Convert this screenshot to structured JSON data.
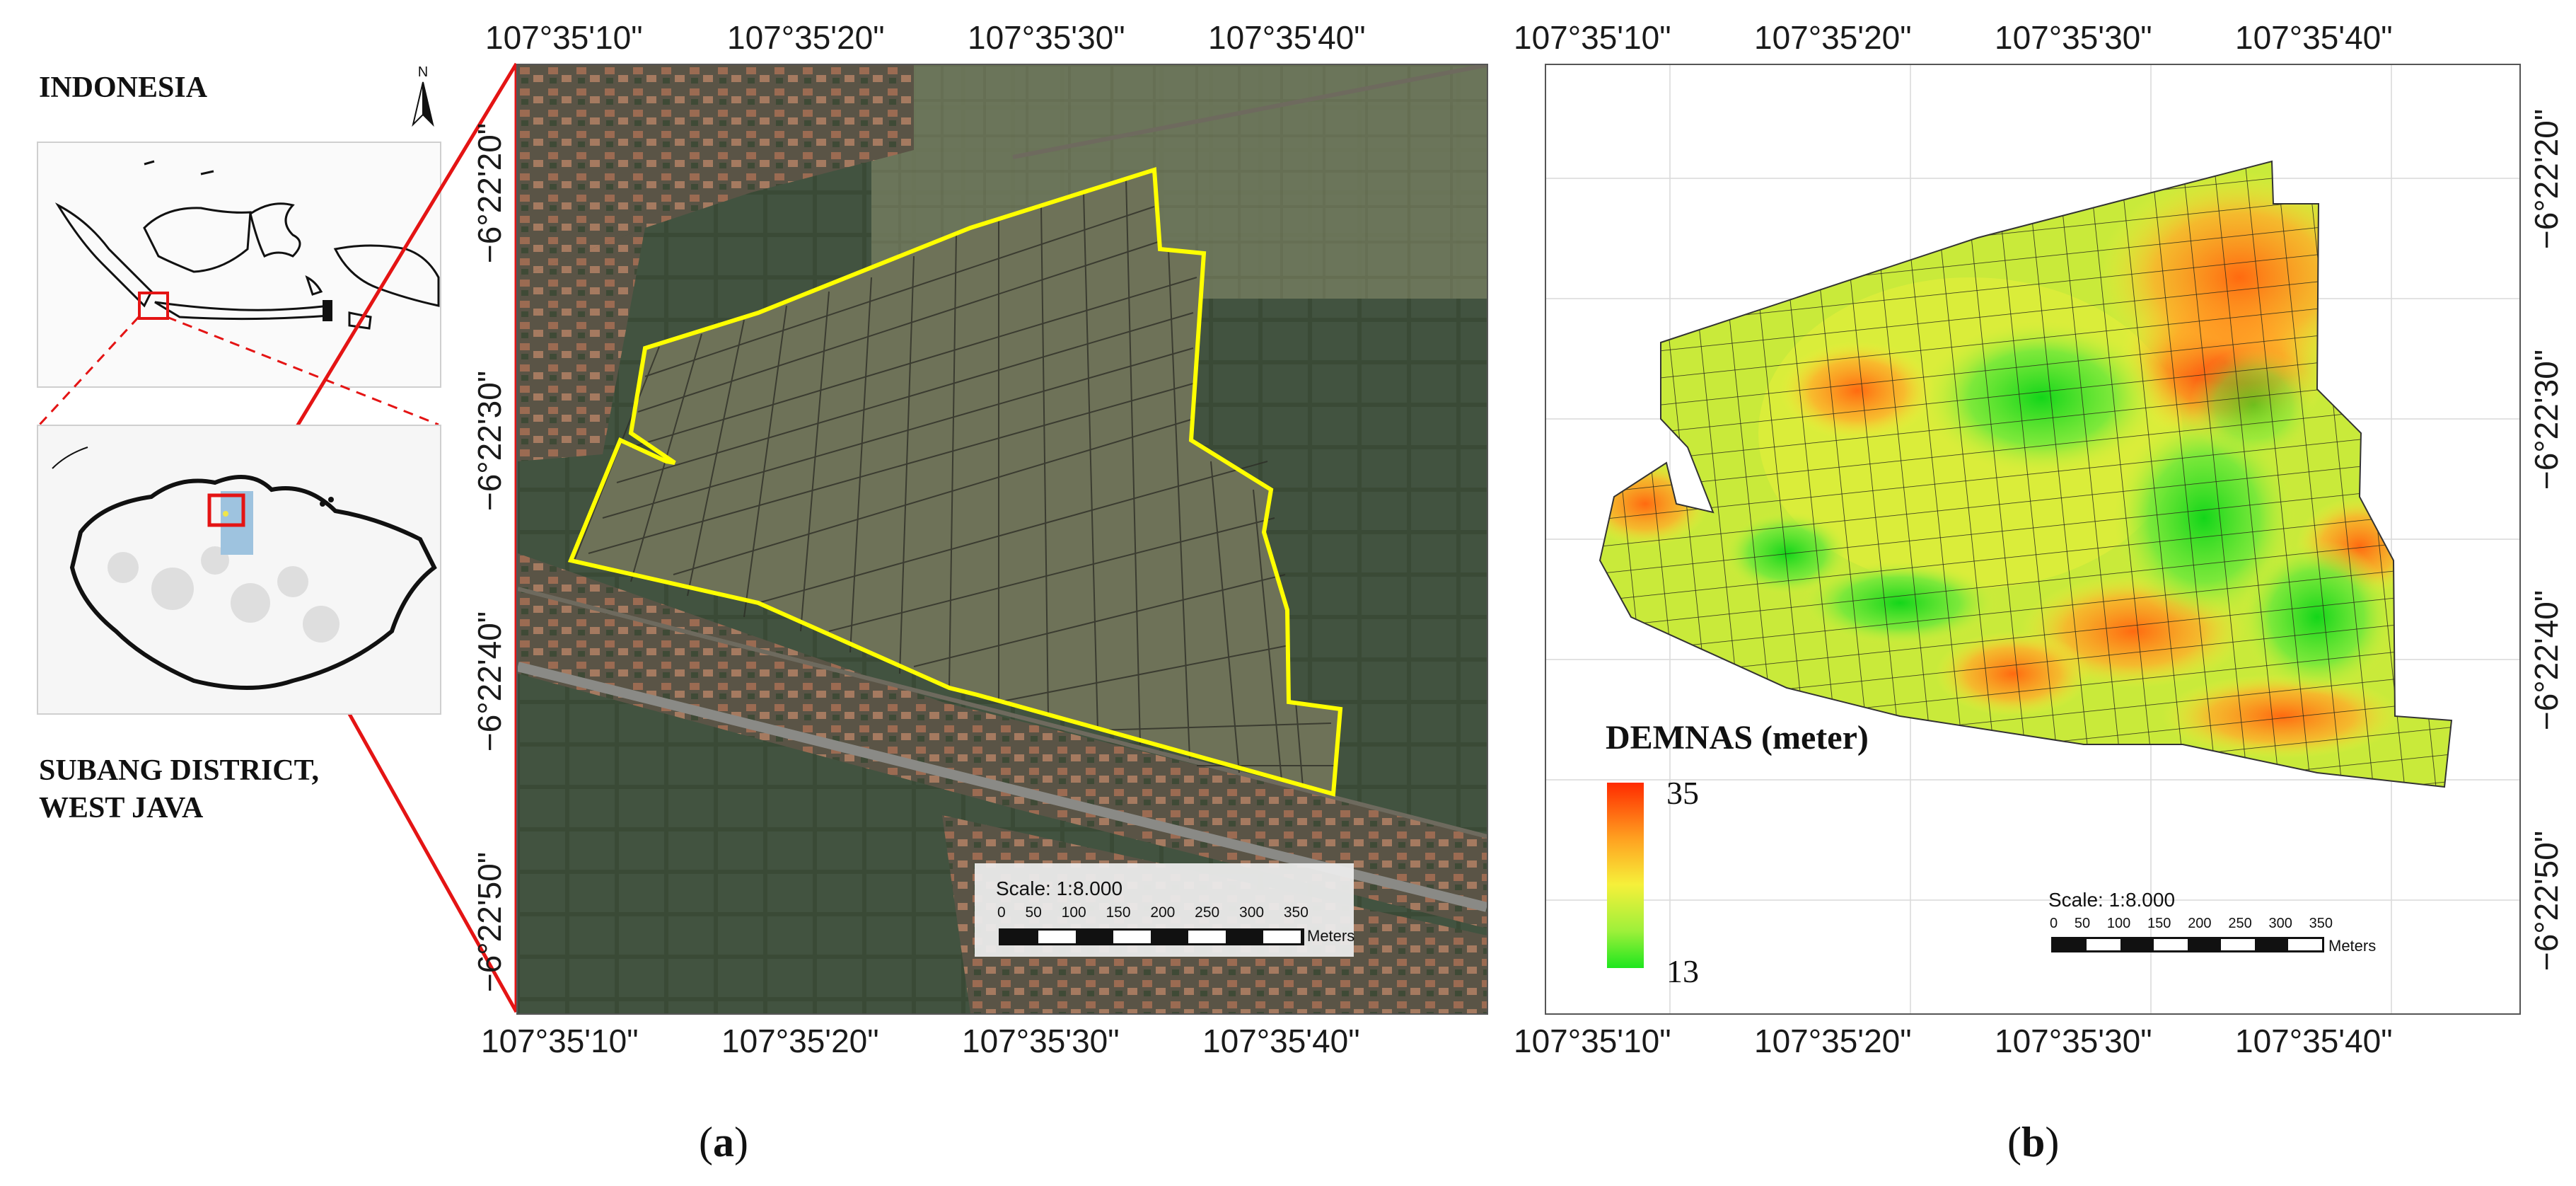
{
  "locator": {
    "country_label": "INDONESIA",
    "north_label": "N",
    "district_label_line1": "SUBANG DISTRICT,",
    "district_label_line2": "WEST JAVA"
  },
  "panel_a": {
    "label_open": "(",
    "label_letter": "a",
    "label_close": ")",
    "top_ticks": [
      "107°35'10\"",
      "107°35'20\"",
      "107°35'30\"",
      "107°35'40\""
    ],
    "bottom_ticks": [
      "107°35'10\"",
      "107°35'20\"",
      "107°35'30\"",
      "107°35'40\""
    ],
    "left_ticks": [
      "−6°22'20\"",
      "−6°22'30\"",
      "−6°22'40\"",
      "−6°22'50\""
    ],
    "scale": {
      "text": "Scale: 1:8.000",
      "ticks": [
        "0",
        "50",
        "100",
        "150",
        "200",
        "250",
        "300",
        "350"
      ],
      "unit": "Meters"
    },
    "boundary_color": "#ffff00"
  },
  "panel_b": {
    "label_open": "(",
    "label_letter": "b",
    "label_close": ")",
    "top_ticks": [
      "107°35'10\"",
      "107°35'20\"",
      "107°35'30\"",
      "107°35'40\""
    ],
    "bottom_ticks": [
      "107°35'10\"",
      "107°35'20\"",
      "107°35'30\"",
      "107°35'40\""
    ],
    "right_ticks": [
      "−6°22'20\"",
      "−6°22'30\"",
      "−6°22'40\"",
      "−6°22'50\""
    ],
    "legend": {
      "title": "DEMNAS (meter)",
      "max": "35",
      "min": "13",
      "color_high": "#ff2a00",
      "color_mid": "#f6f03a",
      "color_low": "#1ee61e"
    },
    "scale": {
      "text": "Scale: 1:8.000",
      "ticks": [
        "0",
        "50",
        "100",
        "150",
        "200",
        "250",
        "300",
        "350"
      ],
      "unit": "Meters"
    }
  },
  "accent_color": "#e41414"
}
